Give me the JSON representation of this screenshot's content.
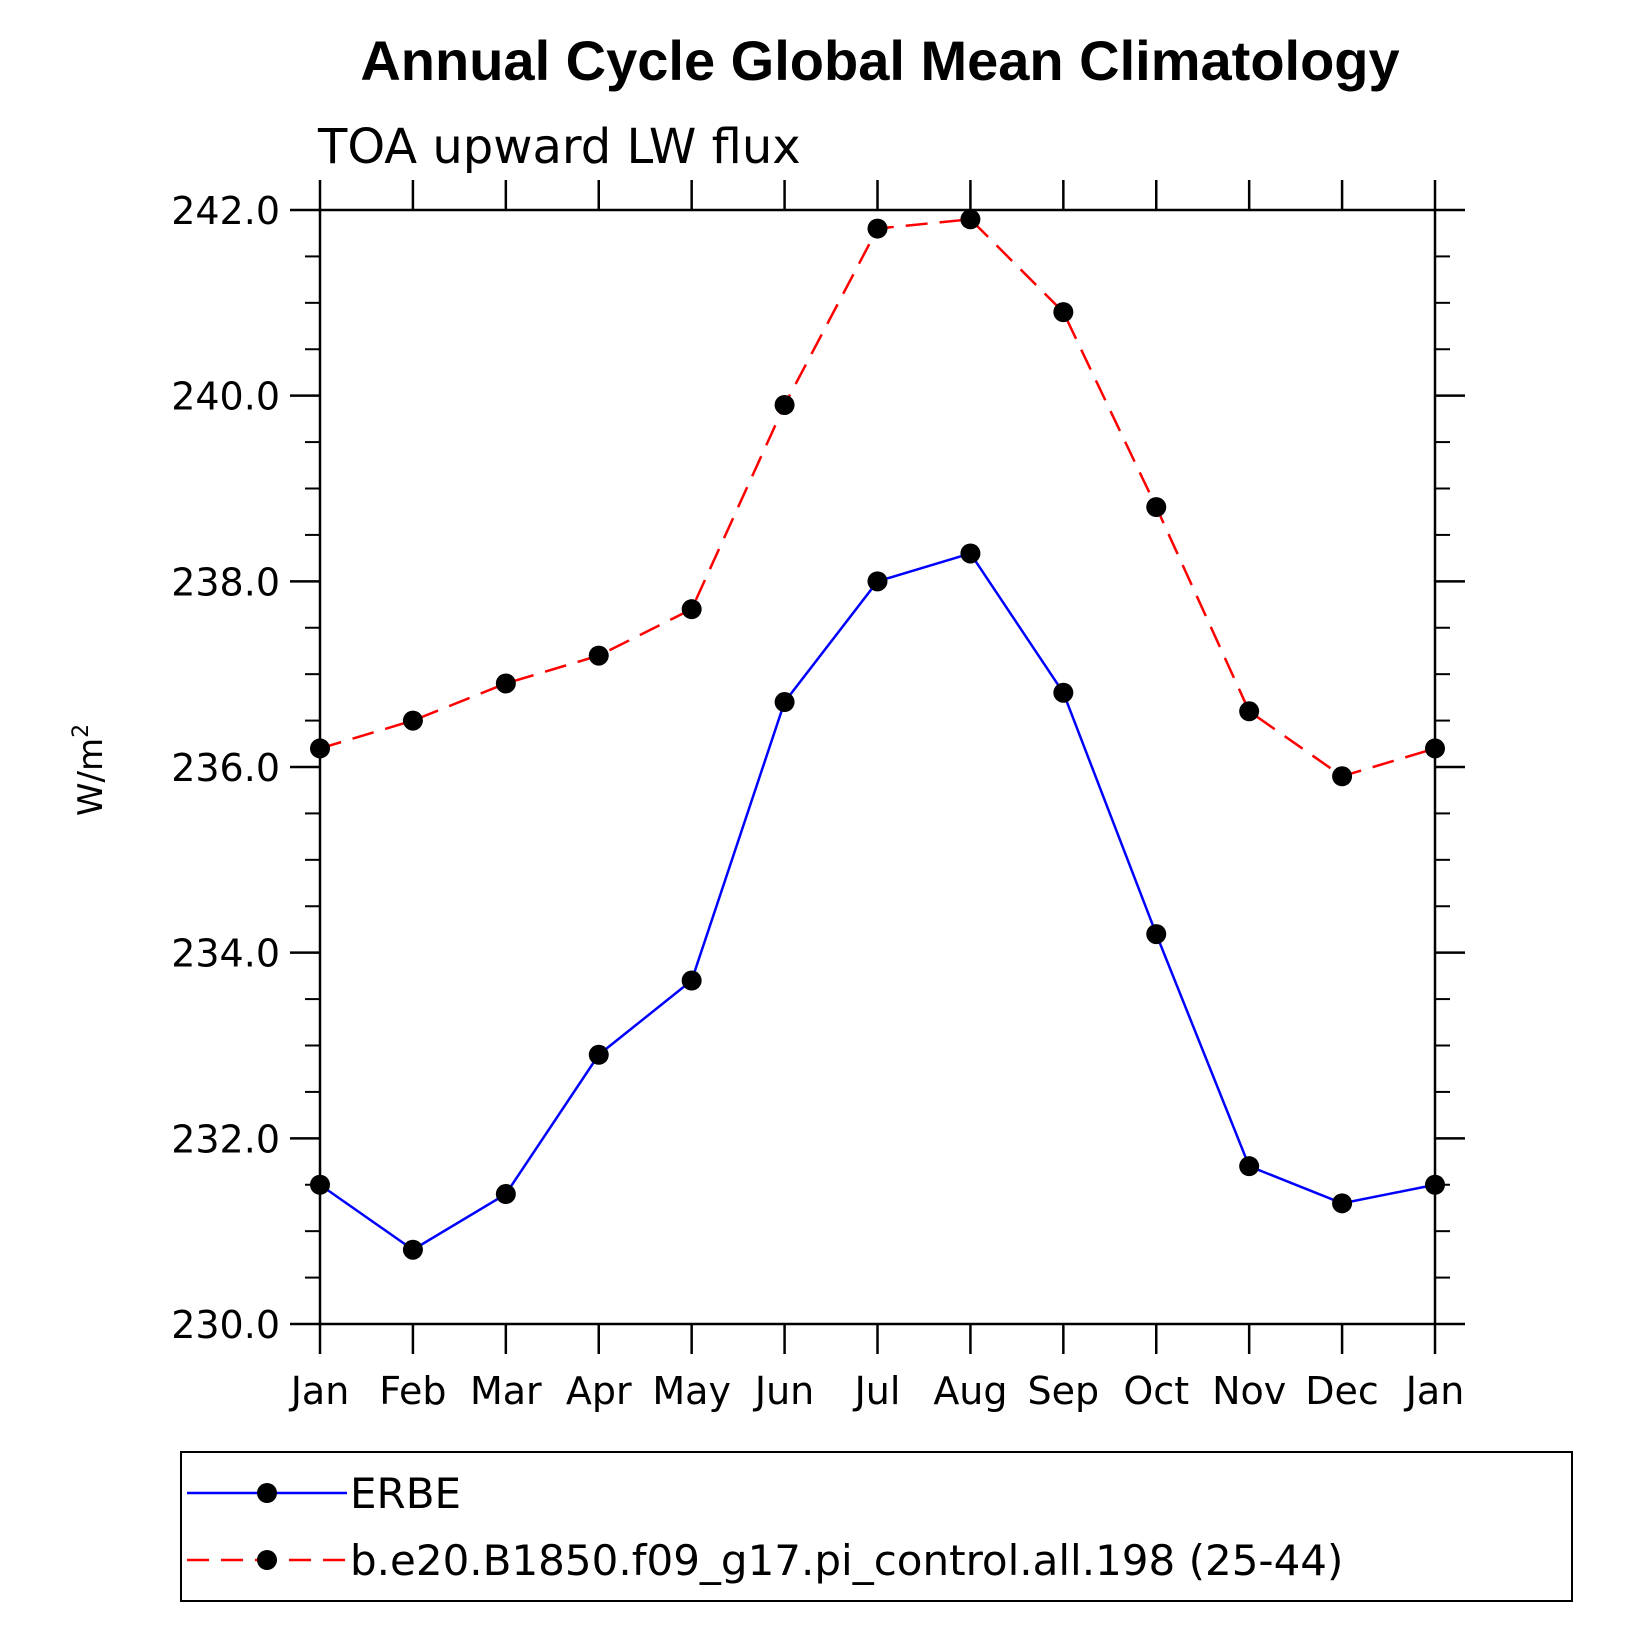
{
  "chart_data": {
    "type": "line",
    "title": "Annual Cycle Global Mean Climatology",
    "subtitle": "TOA upward LW flux",
    "ylabel_base": "W/m",
    "ylabel_sup": "2",
    "xlabel": "",
    "categories": [
      "Jan",
      "Feb",
      "Mar",
      "Apr",
      "May",
      "Jun",
      "Jul",
      "Aug",
      "Sep",
      "Oct",
      "Nov",
      "Dec",
      "Jan"
    ],
    "ylim": [
      230.0,
      242.0
    ],
    "yticks": [
      230.0,
      232.0,
      234.0,
      236.0,
      238.0,
      240.0,
      242.0
    ],
    "ytick_labels": [
      "230.0",
      "232.0",
      "234.0",
      "236.0",
      "238.0",
      "240.0",
      "242.0"
    ],
    "grid": false,
    "legend_position": "bottom",
    "series": [
      {
        "name": "ERBE",
        "color": "#0000ff",
        "line_style": "solid",
        "marker": "filled-circle",
        "values": [
          231.5,
          230.8,
          231.4,
          232.9,
          233.7,
          236.7,
          238.0,
          238.3,
          236.8,
          234.2,
          231.7,
          231.3,
          231.5
        ]
      },
      {
        "name": "b.e20.B1850.f09_g17.pi_control.all.198 (25-44)",
        "color": "#ff0000",
        "line_style": "dashed",
        "marker": "filled-circle",
        "values": [
          236.2,
          236.5,
          236.9,
          237.2,
          237.7,
          239.9,
          241.8,
          241.9,
          240.9,
          238.8,
          236.6,
          235.9,
          236.2
        ]
      }
    ]
  }
}
